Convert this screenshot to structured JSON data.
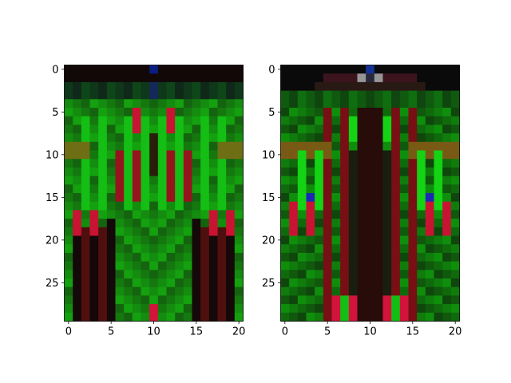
{
  "chart_data": [
    {
      "type": "heatmap",
      "title": "",
      "xlabel": "",
      "ylabel": "",
      "rows": 30,
      "cols": 21,
      "xlim": [
        -0.5,
        20.5
      ],
      "ylim": [
        29.5,
        -0.5
      ],
      "xticks": [
        0,
        5,
        10,
        15,
        20
      ],
      "xtick_labels": [
        "0",
        "5",
        "10",
        "15",
        "20"
      ],
      "yticks": [
        0,
        5,
        10,
        15,
        20,
        25
      ],
      "ytick_labels": [
        "0",
        "5",
        "10",
        "15",
        "20",
        "25"
      ],
      "pattern": "mirror-symmetric RGB pixel image: green vertical stripes with red highlights, dark top rows, blue pixel at top center"
    },
    {
      "type": "heatmap",
      "title": "",
      "xlabel": "",
      "ylabel": "",
      "rows": 30,
      "cols": 21,
      "xlim": [
        -0.5,
        20.5
      ],
      "ylim": [
        29.5,
        -0.5
      ],
      "xticks": [
        0,
        5,
        10,
        15,
        20
      ],
      "xtick_labels": [
        "0",
        "5",
        "10",
        "15",
        "20"
      ],
      "yticks": [
        0,
        5,
        10,
        15,
        20,
        25
      ],
      "ytick_labels": [
        "0",
        "5",
        "10",
        "15",
        "20",
        "25"
      ],
      "pattern": "mirror-symmetric RGB pixel image: dark green field, bright green and red bars at sides, black top band with grey and blue pixels"
    }
  ]
}
